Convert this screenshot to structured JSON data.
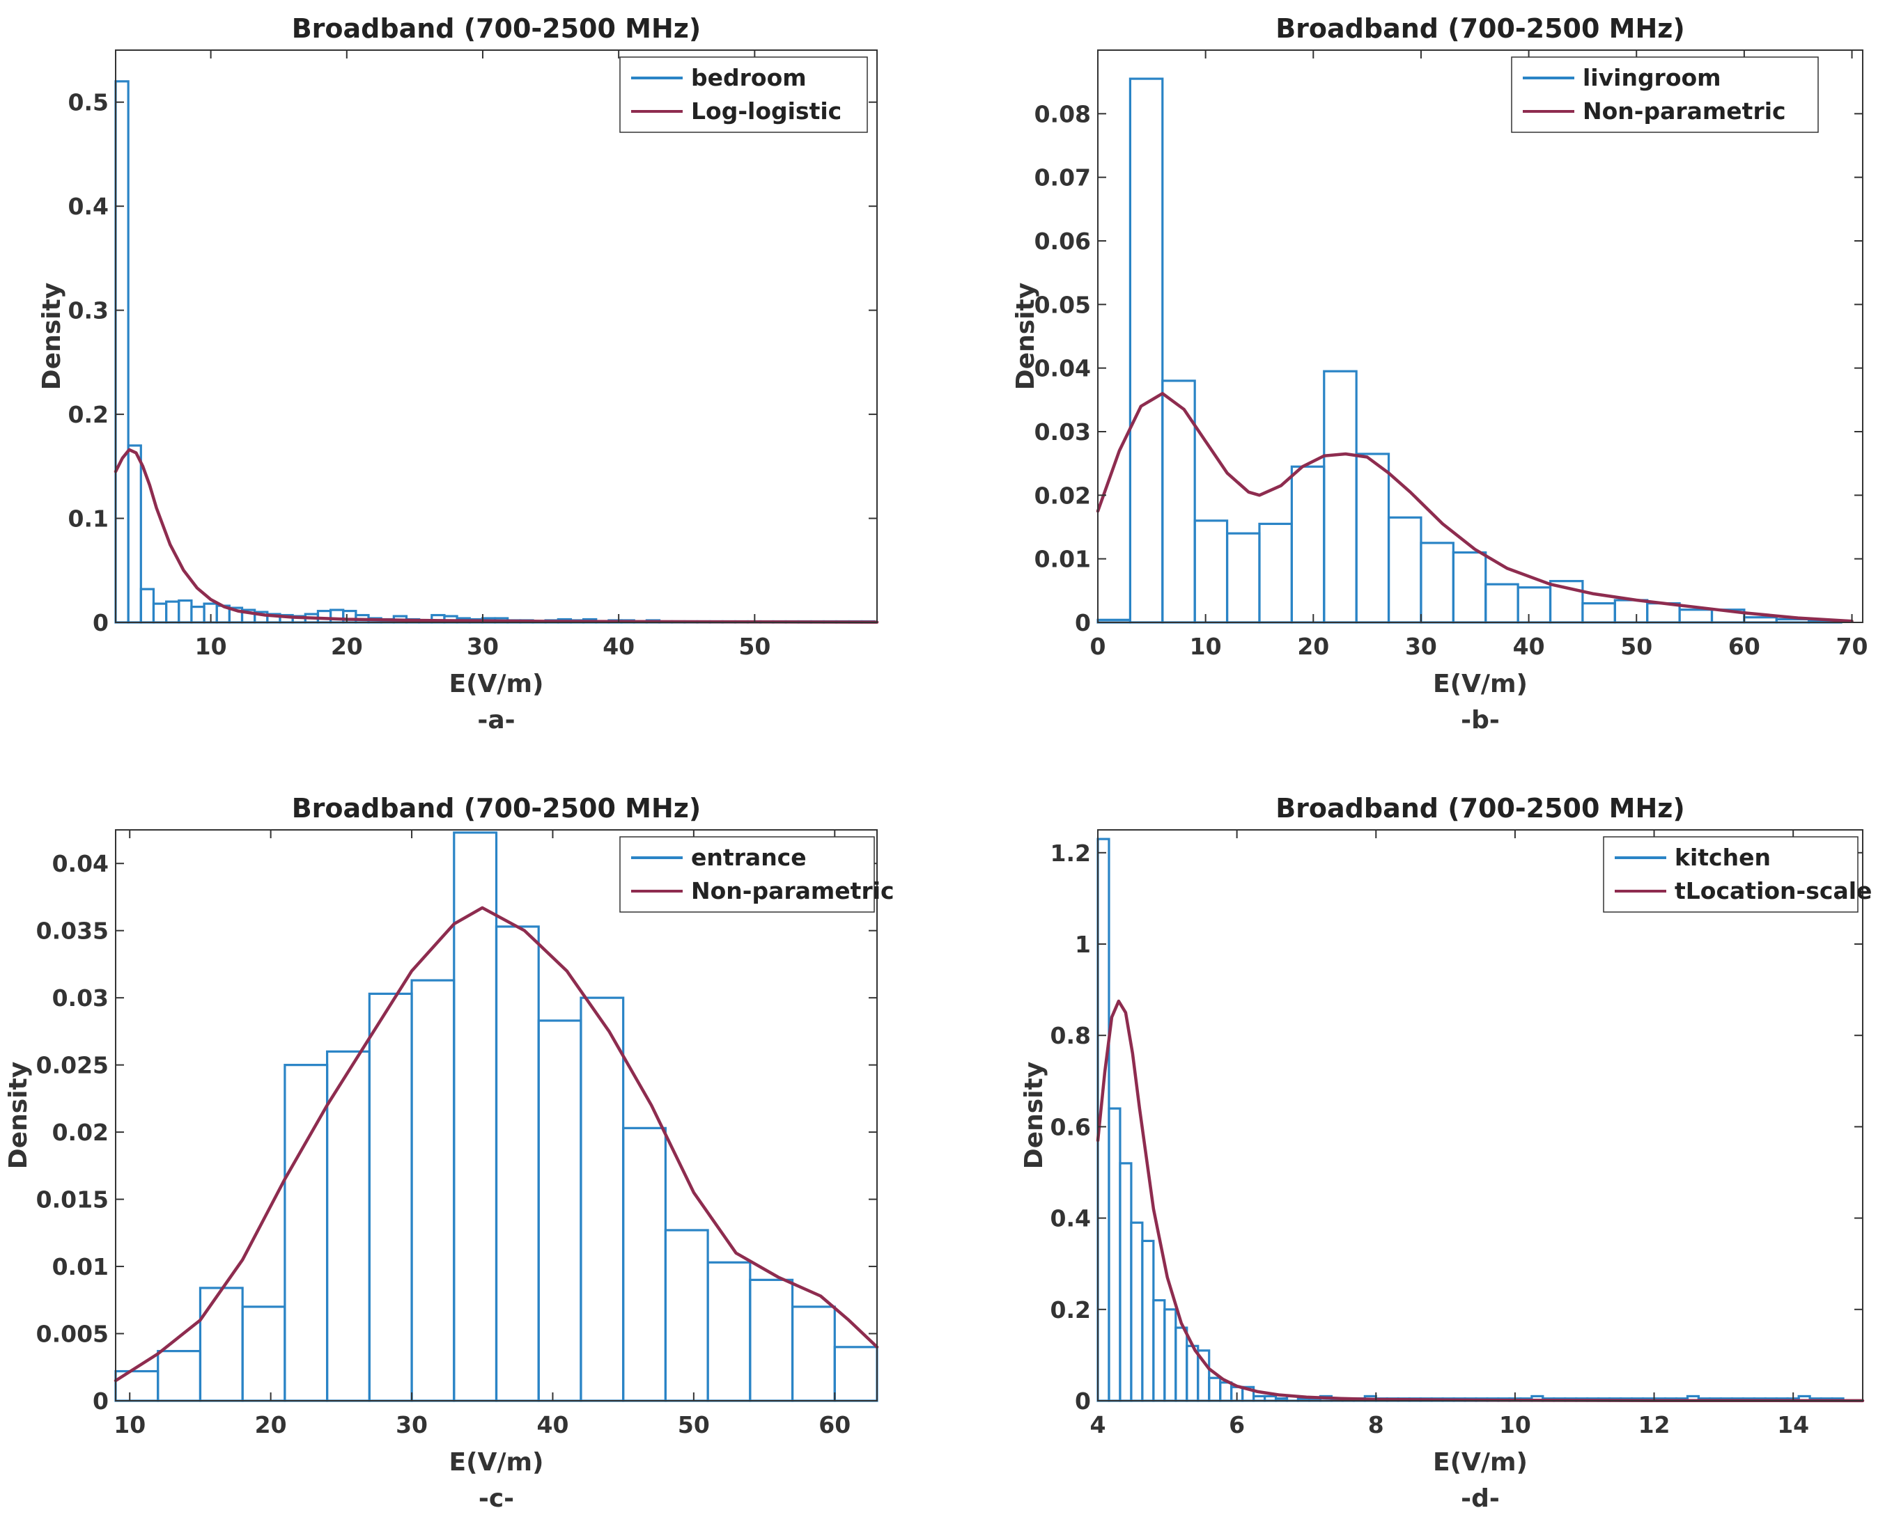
{
  "chart_data": [
    {
      "id": "a",
      "type": "bar",
      "title": "Broadband (700-2500 MHz)",
      "xlabel": "E(V/m)",
      "ylabel": "Density",
      "subcaption": "-a-",
      "xlim": [
        3,
        59
      ],
      "ylim": [
        0,
        0.55
      ],
      "xticks": [
        10,
        20,
        30,
        40,
        50
      ],
      "yticks": [
        0,
        0.1,
        0.2,
        0.3,
        0.4,
        0.5
      ],
      "ytick_labels": [
        "0",
        "0.1",
        "0.2",
        "0.3",
        "0.4",
        "0.5"
      ],
      "bin_start": 3,
      "bin_width": 0.93,
      "values": [
        0.52,
        0.17,
        0.032,
        0.018,
        0.02,
        0.021,
        0.015,
        0.018,
        0.016,
        0.014,
        0.012,
        0.01,
        0.008,
        0.007,
        0.006,
        0.008,
        0.011,
        0.012,
        0.011,
        0.007,
        0.004,
        0.003,
        0.006,
        0.003,
        0.002,
        0.007,
        0.006,
        0.004,
        0.003,
        0.004,
        0.004,
        0.002,
        0.002,
        0.001,
        0.002,
        0.003,
        0.002,
        0.003,
        0.001,
        0.002,
        0.002,
        0.001,
        0.002,
        0.001,
        0.001,
        0.001,
        0.001,
        0.001,
        0.001,
        0.001,
        0.001,
        0.001,
        0.001,
        0.001,
        0.001,
        0.001,
        0.001,
        0.001,
        0.001,
        0.001
      ],
      "fit": {
        "name": "Log-logistic",
        "x": [
          3,
          3.5,
          4,
          4.5,
          5,
          5.5,
          6,
          7,
          8,
          9,
          10,
          11,
          12,
          14,
          16,
          18,
          20,
          25,
          30,
          35,
          40,
          50,
          59
        ],
        "y": [
          0.145,
          0.158,
          0.166,
          0.163,
          0.15,
          0.132,
          0.11,
          0.075,
          0.05,
          0.033,
          0.022,
          0.015,
          0.011,
          0.007,
          0.005,
          0.004,
          0.003,
          0.002,
          0.0015,
          0.001,
          0.0008,
          0.0005,
          0.0003
        ]
      },
      "legend": [
        "bedroom",
        "Log-logistic"
      ],
      "legend_position": "top-right"
    },
    {
      "id": "b",
      "type": "bar",
      "title": "Broadband (700-2500 MHz)",
      "xlabel": "E(V/m)",
      "ylabel": "Density",
      "subcaption": "-b-",
      "xlim": [
        0,
        71
      ],
      "ylim": [
        0,
        0.09
      ],
      "xticks": [
        0,
        10,
        20,
        30,
        40,
        50,
        60,
        70
      ],
      "yticks": [
        0,
        0.01,
        0.02,
        0.03,
        0.04,
        0.05,
        0.06,
        0.07,
        0.08
      ],
      "ytick_labels": [
        "0",
        "0.01",
        "0.02",
        "0.03",
        "0.04",
        "0.05",
        "0.06",
        "0.07",
        "0.08"
      ],
      "bin_start": 0,
      "bin_width": 3,
      "values": [
        0.0004,
        0.0855,
        0.038,
        0.016,
        0.014,
        0.0155,
        0.0245,
        0.0395,
        0.0265,
        0.0165,
        0.0125,
        0.011,
        0.006,
        0.0055,
        0.0065,
        0.003,
        0.0035,
        0.003,
        0.002,
        0.002,
        0.0008,
        0.0005,
        0.0002
      ],
      "fit": {
        "name": "Non-parametric",
        "x": [
          0,
          2,
          4,
          6,
          8,
          10,
          12,
          14,
          15,
          17,
          19,
          21,
          23,
          25,
          27,
          29,
          32,
          35,
          38,
          42,
          46,
          50,
          55,
          60,
          65,
          70
        ],
        "y": [
          0.0175,
          0.027,
          0.034,
          0.036,
          0.0335,
          0.0285,
          0.0235,
          0.0205,
          0.02,
          0.0215,
          0.0245,
          0.0262,
          0.0265,
          0.026,
          0.0235,
          0.0205,
          0.0155,
          0.0115,
          0.0085,
          0.006,
          0.0045,
          0.0035,
          0.0025,
          0.0015,
          0.0007,
          0.0002
        ]
      },
      "legend": [
        "livingroom",
        "Non-parametric"
      ],
      "legend_position": "top-right"
    },
    {
      "id": "c",
      "type": "bar",
      "title": "Broadband (700-2500 MHz)",
      "xlabel": "E(V/m)",
      "ylabel": "Density",
      "subcaption": "-c-",
      "xlim": [
        9,
        63
      ],
      "ylim": [
        0,
        0.0425
      ],
      "xticks": [
        10,
        20,
        30,
        40,
        50,
        60
      ],
      "yticks": [
        0,
        0.005,
        0.01,
        0.015,
        0.02,
        0.025,
        0.03,
        0.035,
        0.04
      ],
      "ytick_labels": [
        "0",
        "0.005",
        "0.01",
        "0.015",
        "0.02",
        "0.025",
        "0.03",
        "0.035",
        "0.04"
      ],
      "bin_start": 9,
      "bin_width": 3,
      "values": [
        0.0022,
        0.0037,
        0.0084,
        0.007,
        0.025,
        0.026,
        0.0303,
        0.0313,
        0.0423,
        0.0353,
        0.0283,
        0.03,
        0.0203,
        0.0127,
        0.0103,
        0.009,
        0.007,
        0.004
      ],
      "fit": {
        "name": "Non-parametric",
        "x": [
          9,
          12,
          15,
          18,
          21,
          24,
          27,
          30,
          33,
          35,
          38,
          41,
          44,
          47,
          50,
          53,
          56,
          59,
          61,
          63
        ],
        "y": [
          0.0015,
          0.0035,
          0.006,
          0.0105,
          0.0165,
          0.022,
          0.027,
          0.032,
          0.0355,
          0.0367,
          0.035,
          0.032,
          0.0275,
          0.022,
          0.0155,
          0.011,
          0.0092,
          0.0078,
          0.006,
          0.004
        ]
      },
      "legend": [
        "entrance",
        "Non-parametric"
      ],
      "legend_position": "top-right"
    },
    {
      "id": "d",
      "type": "bar",
      "title": "Broadband (700-2500 MHz)",
      "xlabel": "E(V/m)",
      "ylabel": "Density",
      "subcaption": "-d-",
      "xlim": [
        4,
        15
      ],
      "ylim": [
        0,
        1.25
      ],
      "xticks": [
        4,
        6,
        8,
        10,
        12,
        14
      ],
      "yticks": [
        0,
        0.2,
        0.4,
        0.6,
        0.8,
        1,
        1.2
      ],
      "ytick_labels": [
        "0",
        "0.2",
        "0.4",
        "0.6",
        "0.8",
        "1",
        "1.2"
      ],
      "bin_start": 4,
      "bin_width": 0.16,
      "values": [
        1.23,
        0.64,
        0.52,
        0.39,
        0.35,
        0.22,
        0.2,
        0.16,
        0.12,
        0.11,
        0.05,
        0.04,
        0.03,
        0.03,
        0.01,
        0.01,
        0.005,
        0.01,
        0.005,
        0.005,
        0.01,
        0.005,
        0.005,
        0.005,
        0.01,
        0.005,
        0.005,
        0.005,
        0.005,
        0.005,
        0.005,
        0.005,
        0.005,
        0.005,
        0.005,
        0.005,
        0.005,
        0.005,
        0.005,
        0.01,
        0.005,
        0.005,
        0.005,
        0.005,
        0.005,
        0.005,
        0.005,
        0.005,
        0.005,
        0.005,
        0.005,
        0.005,
        0.005,
        0.01,
        0.005,
        0.005,
        0.005,
        0.005,
        0.005,
        0.005,
        0.005,
        0.005,
        0.005,
        0.01,
        0.005,
        0.005,
        0.005
      ],
      "fit": {
        "name": "tLocation-scale",
        "x": [
          4,
          4.1,
          4.2,
          4.3,
          4.4,
          4.5,
          4.6,
          4.8,
          5,
          5.2,
          5.4,
          5.6,
          5.8,
          6,
          6.3,
          6.6,
          7,
          7.5,
          8,
          9,
          10,
          12,
          15
        ],
        "y": [
          0.57,
          0.72,
          0.84,
          0.875,
          0.85,
          0.76,
          0.64,
          0.42,
          0.27,
          0.17,
          0.11,
          0.07,
          0.047,
          0.032,
          0.02,
          0.013,
          0.008,
          0.005,
          0.003,
          0.002,
          0.001,
          0.0005,
          0.0002
        ]
      },
      "legend": [
        "kitchen",
        "tLocation-scale"
      ],
      "legend_position": "top-right"
    }
  ],
  "colors": {
    "histogram": "#2a84c6",
    "fit": "#8e2c4f",
    "axis": "#333333"
  }
}
